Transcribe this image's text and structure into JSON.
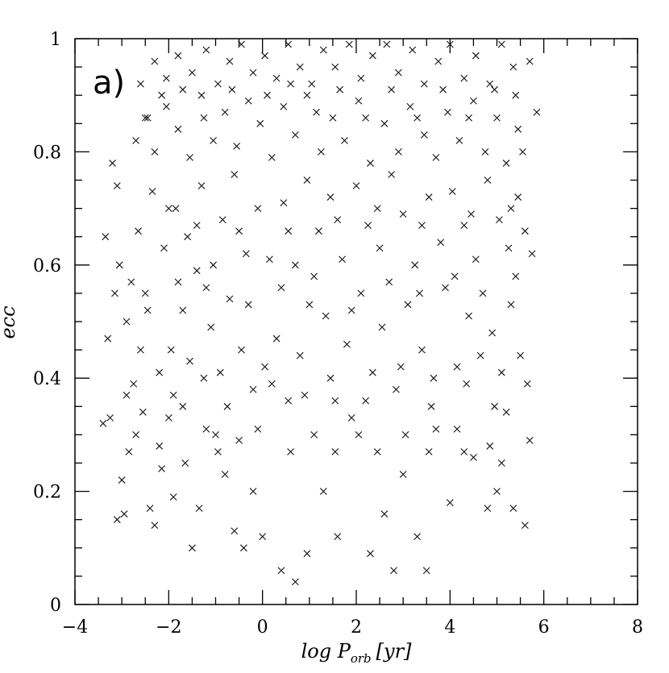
{
  "chart_data": {
    "type": "scatter",
    "title": "",
    "panel_label": "a)",
    "xlabel": "log P",
    "xlabel_sub": "orb",
    "xlabel_unit": "[yr]",
    "ylabel": "ecc",
    "xlim": [
      -4,
      8
    ],
    "ylim": [
      0,
      1
    ],
    "xticks": [
      -4,
      -2,
      0,
      2,
      4,
      6,
      8
    ],
    "xtick_labels": [
      "−4",
      "−2",
      "0",
      "2",
      "4",
      "6",
      "8"
    ],
    "yticks": [
      0,
      0.2,
      0.4,
      0.6,
      0.8,
      1
    ],
    "ytick_labels": [
      "0",
      "0.2",
      "0.4",
      "0.6",
      "0.8",
      "1"
    ],
    "grid": false,
    "marker": "x",
    "series": [
      {
        "name": "",
        "points": [
          [
            -3.4,
            0.32
          ],
          [
            -3.25,
            0.33
          ],
          [
            -3.1,
            0.15
          ],
          [
            -2.95,
            0.16
          ],
          [
            -3.0,
            0.22
          ],
          [
            -2.85,
            0.27
          ],
          [
            -2.7,
            0.3
          ],
          [
            -2.55,
            0.34
          ],
          [
            -2.4,
            0.17
          ],
          [
            -2.3,
            0.14
          ],
          [
            -2.15,
            0.24
          ],
          [
            -2.0,
            0.33
          ],
          [
            -1.9,
            0.19
          ],
          [
            -1.7,
            0.35
          ],
          [
            -1.5,
            0.1
          ],
          [
            -1.35,
            0.17
          ],
          [
            -1.2,
            0.31
          ],
          [
            -1.0,
            0.3
          ],
          [
            -0.8,
            0.23
          ],
          [
            -0.6,
            0.13
          ],
          [
            -0.5,
            0.29
          ],
          [
            -0.4,
            0.1
          ],
          [
            -0.2,
            0.2
          ],
          [
            0.0,
            0.12
          ],
          [
            0.4,
            0.06
          ],
          [
            0.7,
            0.04
          ],
          [
            0.95,
            0.09
          ],
          [
            1.3,
            0.2
          ],
          [
            1.6,
            0.12
          ],
          [
            1.9,
            0.33
          ],
          [
            2.3,
            0.09
          ],
          [
            2.6,
            0.16
          ],
          [
            2.8,
            0.06
          ],
          [
            3.0,
            0.23
          ],
          [
            3.3,
            0.12
          ],
          [
            3.5,
            0.06
          ],
          [
            3.7,
            0.31
          ],
          [
            4.0,
            0.18
          ],
          [
            4.3,
            0.27
          ],
          [
            4.5,
            0.26
          ],
          [
            4.8,
            0.17
          ],
          [
            5.0,
            0.2
          ],
          [
            5.2,
            0.34
          ],
          [
            5.35,
            0.17
          ],
          [
            5.6,
            0.14
          ],
          [
            5.7,
            0.29
          ],
          [
            -3.3,
            0.47
          ],
          [
            -3.15,
            0.55
          ],
          [
            -2.9,
            0.37
          ],
          [
            -2.75,
            0.39
          ],
          [
            -2.6,
            0.45
          ],
          [
            -2.45,
            0.52
          ],
          [
            -2.2,
            0.41
          ],
          [
            -1.95,
            0.45
          ],
          [
            -1.8,
            0.57
          ],
          [
            -1.55,
            0.43
          ],
          [
            -1.4,
            0.59
          ],
          [
            -1.1,
            0.49
          ],
          [
            -0.9,
            0.41
          ],
          [
            -0.7,
            0.54
          ],
          [
            -0.45,
            0.45
          ],
          [
            -0.2,
            0.38
          ],
          [
            0.05,
            0.42
          ],
          [
            0.3,
            0.47
          ],
          [
            0.55,
            0.36
          ],
          [
            0.8,
            0.44
          ],
          [
            1.1,
            0.58
          ],
          [
            1.35,
            0.51
          ],
          [
            1.55,
            0.36
          ],
          [
            1.8,
            0.46
          ],
          [
            2.1,
            0.55
          ],
          [
            2.35,
            0.41
          ],
          [
            2.55,
            0.49
          ],
          [
            2.85,
            0.38
          ],
          [
            3.1,
            0.53
          ],
          [
            3.4,
            0.45
          ],
          [
            3.65,
            0.4
          ],
          [
            3.9,
            0.56
          ],
          [
            4.15,
            0.42
          ],
          [
            4.4,
            0.51
          ],
          [
            4.65,
            0.44
          ],
          [
            4.9,
            0.48
          ],
          [
            5.1,
            0.41
          ],
          [
            5.3,
            0.53
          ],
          [
            5.5,
            0.44
          ],
          [
            5.65,
            0.39
          ],
          [
            -3.35,
            0.65
          ],
          [
            -3.05,
            0.6
          ],
          [
            -2.8,
            0.57
          ],
          [
            -2.65,
            0.66
          ],
          [
            -2.35,
            0.73
          ],
          [
            -2.1,
            0.63
          ],
          [
            -1.85,
            0.7
          ],
          [
            -1.6,
            0.65
          ],
          [
            -1.3,
            0.74
          ],
          [
            -1.05,
            0.6
          ],
          [
            -0.85,
            0.68
          ],
          [
            -0.6,
            0.76
          ],
          [
            -0.35,
            0.62
          ],
          [
            -0.1,
            0.7
          ],
          [
            0.15,
            0.61
          ],
          [
            0.45,
            0.71
          ],
          [
            0.7,
            0.6
          ],
          [
            0.95,
            0.75
          ],
          [
            1.2,
            0.66
          ],
          [
            1.45,
            0.72
          ],
          [
            1.7,
            0.61
          ],
          [
            2.0,
            0.74
          ],
          [
            2.25,
            0.67
          ],
          [
            2.5,
            0.63
          ],
          [
            2.75,
            0.76
          ],
          [
            3.0,
            0.69
          ],
          [
            3.25,
            0.6
          ],
          [
            3.55,
            0.72
          ],
          [
            3.8,
            0.64
          ],
          [
            4.05,
            0.73
          ],
          [
            4.3,
            0.67
          ],
          [
            4.55,
            0.61
          ],
          [
            4.8,
            0.75
          ],
          [
            5.05,
            0.68
          ],
          [
            5.25,
            0.63
          ],
          [
            5.45,
            0.72
          ],
          [
            5.6,
            0.66
          ],
          [
            5.75,
            0.62
          ],
          [
            -3.2,
            0.78
          ],
          [
            -3.1,
            0.74
          ],
          [
            -2.7,
            0.82
          ],
          [
            -2.5,
            0.86
          ],
          [
            -2.3,
            0.8
          ],
          [
            -2.05,
            0.88
          ],
          [
            -1.8,
            0.84
          ],
          [
            -1.55,
            0.79
          ],
          [
            -1.3,
            0.9
          ],
          [
            -1.05,
            0.82
          ],
          [
            -0.8,
            0.87
          ],
          [
            -0.55,
            0.81
          ],
          [
            -0.3,
            0.89
          ],
          [
            -0.05,
            0.85
          ],
          [
            0.2,
            0.79
          ],
          [
            0.45,
            0.88
          ],
          [
            0.7,
            0.83
          ],
          [
            0.95,
            0.9
          ],
          [
            1.25,
            0.8
          ],
          [
            1.5,
            0.86
          ],
          [
            1.75,
            0.82
          ],
          [
            2.05,
            0.89
          ],
          [
            2.3,
            0.78
          ],
          [
            2.6,
            0.85
          ],
          [
            2.9,
            0.8
          ],
          [
            3.15,
            0.88
          ],
          [
            3.45,
            0.83
          ],
          [
            3.7,
            0.79
          ],
          [
            3.95,
            0.87
          ],
          [
            4.2,
            0.82
          ],
          [
            4.5,
            0.89
          ],
          [
            4.75,
            0.8
          ],
          [
            5.0,
            0.86
          ],
          [
            5.2,
            0.78
          ],
          [
            5.45,
            0.84
          ],
          [
            5.55,
            0.8
          ],
          [
            -2.6,
            0.92
          ],
          [
            -2.3,
            0.96
          ],
          [
            -2.05,
            0.93
          ],
          [
            -1.8,
            0.97
          ],
          [
            -1.5,
            0.94
          ],
          [
            -1.2,
            0.98
          ],
          [
            -0.95,
            0.92
          ],
          [
            -0.7,
            0.96
          ],
          [
            -0.45,
            0.99
          ],
          [
            -0.2,
            0.94
          ],
          [
            0.05,
            0.97
          ],
          [
            0.3,
            0.93
          ],
          [
            0.55,
            0.99
          ],
          [
            0.8,
            0.95
          ],
          [
            1.05,
            0.92
          ],
          [
            1.3,
            0.98
          ],
          [
            1.55,
            0.95
          ],
          [
            1.85,
            0.99
          ],
          [
            2.1,
            0.93
          ],
          [
            2.35,
            0.97
          ],
          [
            2.65,
            0.99
          ],
          [
            2.9,
            0.94
          ],
          [
            3.2,
            0.98
          ],
          [
            3.45,
            0.92
          ],
          [
            3.75,
            0.96
          ],
          [
            4.0,
            0.99
          ],
          [
            4.3,
            0.93
          ],
          [
            4.55,
            0.97
          ],
          [
            4.85,
            0.92
          ],
          [
            5.1,
            0.99
          ],
          [
            5.35,
            0.95
          ],
          [
            5.7,
            0.96
          ],
          [
            5.85,
            0.87
          ],
          [
            -2.45,
            0.86
          ],
          [
            -2.15,
            0.9
          ],
          [
            -1.7,
            0.91
          ],
          [
            -1.25,
            0.86
          ],
          [
            -0.65,
            0.91
          ],
          [
            0.1,
            0.9
          ],
          [
            0.6,
            0.92
          ],
          [
            1.15,
            0.87
          ],
          [
            1.65,
            0.91
          ],
          [
            2.2,
            0.86
          ],
          [
            2.75,
            0.91
          ],
          [
            3.3,
            0.86
          ],
          [
            3.85,
            0.91
          ],
          [
            4.4,
            0.86
          ],
          [
            4.95,
            0.91
          ],
          [
            5.4,
            0.9
          ],
          [
            -2.9,
            0.5
          ],
          [
            -2.5,
            0.55
          ],
          [
            -1.7,
            0.52
          ],
          [
            -1.2,
            0.56
          ],
          [
            -0.3,
            0.53
          ],
          [
            0.4,
            0.56
          ],
          [
            1.0,
            0.53
          ],
          [
            1.9,
            0.52
          ],
          [
            2.7,
            0.57
          ],
          [
            3.35,
            0.55
          ],
          [
            4.1,
            0.58
          ],
          [
            4.7,
            0.55
          ],
          [
            5.4,
            0.58
          ],
          [
            -2.2,
            0.28
          ],
          [
            -1.65,
            0.25
          ],
          [
            -0.95,
            0.27
          ],
          [
            -0.1,
            0.31
          ],
          [
            0.6,
            0.27
          ],
          [
            1.1,
            0.3
          ],
          [
            1.55,
            0.27
          ],
          [
            2.05,
            0.3
          ],
          [
            2.45,
            0.27
          ],
          [
            3.05,
            0.3
          ],
          [
            3.55,
            0.27
          ],
          [
            4.15,
            0.31
          ],
          [
            4.85,
            0.28
          ],
          [
            5.1,
            0.25
          ],
          [
            -1.9,
            0.37
          ],
          [
            -1.25,
            0.4
          ],
          [
            -0.75,
            0.35
          ],
          [
            0.2,
            0.39
          ],
          [
            0.9,
            0.37
          ],
          [
            1.45,
            0.4
          ],
          [
            2.2,
            0.36
          ],
          [
            2.95,
            0.42
          ],
          [
            3.6,
            0.35
          ],
          [
            4.35,
            0.39
          ],
          [
            4.95,
            0.35
          ],
          [
            -2.0,
            0.7
          ],
          [
            -1.4,
            0.67
          ],
          [
            -0.5,
            0.66
          ],
          [
            0.55,
            0.66
          ],
          [
            1.6,
            0.68
          ],
          [
            2.45,
            0.7
          ],
          [
            3.4,
            0.67
          ],
          [
            4.45,
            0.69
          ],
          [
            5.3,
            0.7
          ]
        ]
      }
    ]
  }
}
